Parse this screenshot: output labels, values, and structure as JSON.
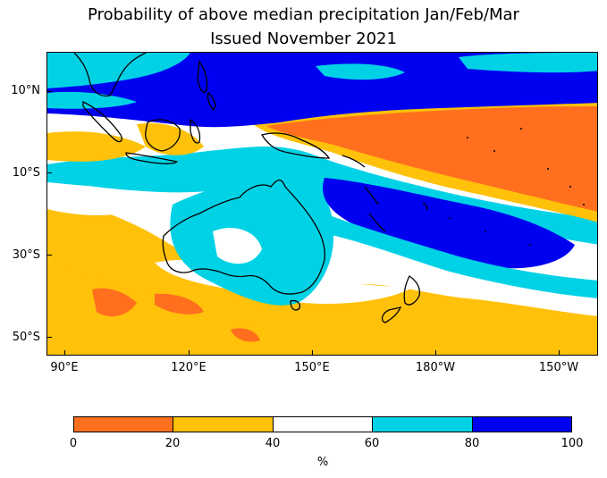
{
  "title_line1": "Probability of above median precipitation Jan/Feb/Mar",
  "title_line2": "Issued November 2021",
  "lat_labels": [
    "10°N",
    "10°S",
    "30°S",
    "50°S"
  ],
  "lon_labels": [
    "90°E",
    "120°E",
    "150°E",
    "180°W",
    "150°W"
  ],
  "colorbar": {
    "bins": [
      {
        "from": 0,
        "to": 20,
        "color": "#ff6f1e"
      },
      {
        "from": 20,
        "to": 40,
        "color": "#ffc10a"
      },
      {
        "from": 40,
        "to": 60,
        "color": "#ffffff"
      },
      {
        "from": 60,
        "to": 80,
        "color": "#00d2e6"
      },
      {
        "from": 80,
        "to": 100,
        "color": "#0000f0"
      }
    ],
    "tick_labels": [
      "0",
      "20",
      "40",
      "60",
      "80",
      "100"
    ],
    "units": "%"
  },
  "map_extent": {
    "lon_min": 86,
    "lon_max": 220,
    "lat_min": -55,
    "lat_max": 20
  }
}
